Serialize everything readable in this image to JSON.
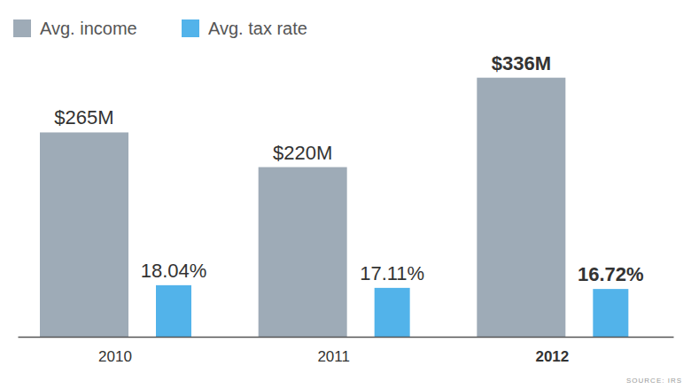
{
  "chart_data": {
    "type": "bar",
    "categories": [
      "2010",
      "2011",
      "2012"
    ],
    "series": [
      {
        "name": "Avg. income",
        "color": "#9eabb7",
        "values": [
          265,
          220,
          336
        ],
        "value_labels": [
          "$265M",
          "$220M",
          "$336M"
        ]
      },
      {
        "name": "Avg. tax rate",
        "color": "#52b3ea",
        "values": [
          18.04,
          17.11,
          16.72
        ],
        "value_labels": [
          "18.04%",
          "17.11%",
          "16.72%"
        ],
        "axis": "y2"
      }
    ],
    "ylim": [
      0,
      400
    ],
    "y2lim": [
      0,
      108
    ],
    "data_labels": true,
    "tick_labels": "x",
    "legend": "top left",
    "source": "SOURCE: IRS"
  }
}
